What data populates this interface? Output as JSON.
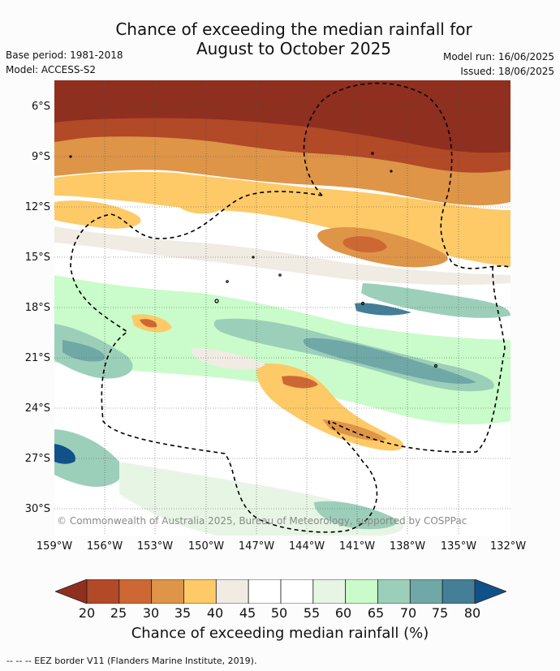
{
  "title_line1": "Chance of exceeding the median rainfall for",
  "title_line2": "August to October 2025",
  "base_period": "Base period: 1981-2018",
  "model": "Model: ACCESS-S2",
  "model_run": "Model run: 16/06/2025",
  "issued": "Issued: 18/06/2025",
  "lat_labels": [
    "6°S",
    "9°S",
    "12°S",
    "15°S",
    "18°S",
    "21°S",
    "24°S",
    "27°S",
    "30°S"
  ],
  "lon_labels": [
    "159°W",
    "156°W",
    "153°W",
    "150°W",
    "147°W",
    "144°W",
    "141°W",
    "138°W",
    "135°W",
    "132°W"
  ],
  "credit": "© Commonwealth of Australia 2025, Bureau of Meteorology, supported by COSPPac",
  "colorbar": {
    "ticks": [
      "20",
      "25",
      "30",
      "35",
      "40",
      "45",
      "50",
      "55",
      "60",
      "65",
      "70",
      "75",
      "80"
    ],
    "colors": [
      "#8e2f1f",
      "#b24927",
      "#cd6834",
      "#de9548",
      "#fdca67",
      "#f0ebe3",
      "#ffffff",
      "#ffffff",
      "#e7f5e5",
      "#c9fcca",
      "#9ccfb9",
      "#6fa8a6",
      "#447e97",
      "#11518a"
    ],
    "label": "Chance of exceeding median rainfall (%)"
  },
  "eez_note": "-- -- -- EEZ border V11 (Flanders Marine Institute, 2019)."
}
